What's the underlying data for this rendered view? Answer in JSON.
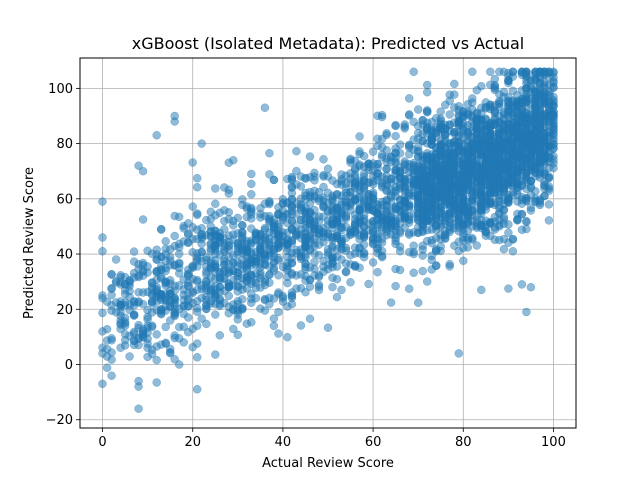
{
  "chart_data": {
    "type": "scatter",
    "title": "xGBoost (Isolated Metadata): Predicted vs Actual",
    "xlabel": "Actual Review Score",
    "ylabel": "Predicted Review Score",
    "xlim": [
      -5,
      105
    ],
    "ylim": [
      -23,
      111
    ],
    "xticks": [
      0,
      20,
      40,
      60,
      80,
      100
    ],
    "yticks": [
      -20,
      0,
      20,
      40,
      60,
      80,
      100
    ],
    "grid": true,
    "point_color": "#1f77b4",
    "point_alpha": 0.5,
    "trend": {
      "slope": 0.62,
      "intercept": 20,
      "noise_sd": 12,
      "point_count": 3500
    },
    "highlighted_points": [
      {
        "x": 0,
        "y": -7
      },
      {
        "x": 8,
        "y": -16
      },
      {
        "x": 8,
        "y": -8
      },
      {
        "x": 8,
        "y": -6
      },
      {
        "x": 21,
        "y": -9
      },
      {
        "x": 0,
        "y": 59
      },
      {
        "x": 0,
        "y": 46
      },
      {
        "x": 0,
        "y": 41
      },
      {
        "x": 0,
        "y": 25
      },
      {
        "x": 0,
        "y": 24
      },
      {
        "x": 0,
        "y": 12
      },
      {
        "x": 0,
        "y": 4
      },
      {
        "x": 8,
        "y": 72
      },
      {
        "x": 9,
        "y": 70
      },
      {
        "x": 12,
        "y": 83
      },
      {
        "x": 16,
        "y": 90
      },
      {
        "x": 16,
        "y": 88
      },
      {
        "x": 22,
        "y": 80
      },
      {
        "x": 36,
        "y": 93
      },
      {
        "x": 79,
        "y": 4
      },
      {
        "x": 94,
        "y": 19
      },
      {
        "x": 86,
        "y": 106
      },
      {
        "x": 100,
        "y": 104
      },
      {
        "x": 94,
        "y": 103
      },
      {
        "x": 96,
        "y": 103
      },
      {
        "x": 84,
        "y": 27
      },
      {
        "x": 93,
        "y": 29
      },
      {
        "x": 95,
        "y": 28
      },
      {
        "x": 17,
        "y": 0
      }
    ]
  }
}
